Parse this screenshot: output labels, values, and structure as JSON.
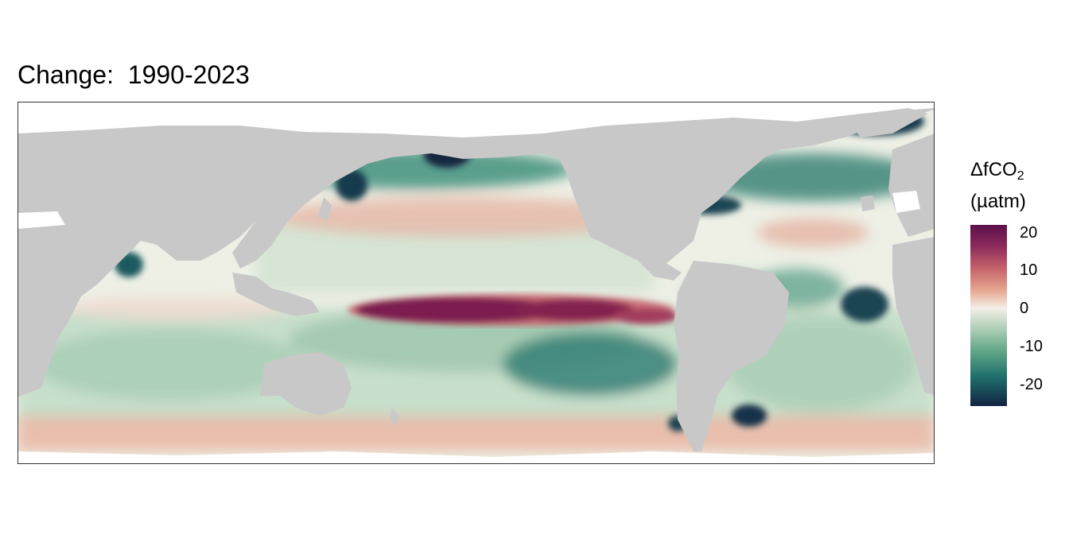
{
  "title": "Change:  1990-2023",
  "legend": {
    "title_main": "ΔfCO",
    "title_sub": "2",
    "unit": "(µatm)",
    "ticks": [
      "20",
      "10",
      "0",
      "-10",
      "-20"
    ],
    "colors": [
      "#5b1049",
      "#c5636b",
      "#f4efe7",
      "#5fa587",
      "#122441"
    ]
  },
  "colors": {
    "land": "#c8c8c8",
    "ice": "#ffffff",
    "positive": "#7b1a4f",
    "negative": "#16384a"
  }
}
